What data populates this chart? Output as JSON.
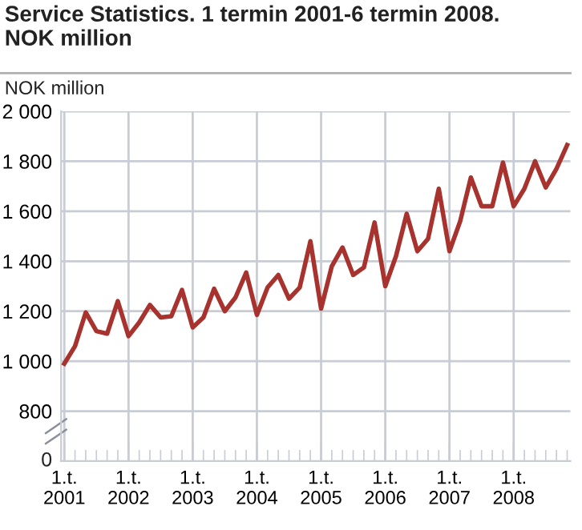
{
  "chart_data": {
    "type": "line",
    "title": "Service Statistics. 1 termin 2001-6 termin 2008.\nNOK million",
    "ylabel": "NOK million",
    "categories": [
      "1.t.\n2001",
      null,
      null,
      null,
      null,
      null,
      "1.t.\n2002",
      null,
      null,
      null,
      null,
      null,
      "1.t.\n2003",
      null,
      null,
      null,
      null,
      null,
      "1.t.\n2004",
      null,
      null,
      null,
      null,
      null,
      "1.t.\n2005",
      null,
      null,
      null,
      null,
      null,
      "1.t.\n2006",
      null,
      null,
      null,
      null,
      null,
      "1.t.\n2007",
      null,
      null,
      null,
      null,
      null,
      "1.t.\n2008",
      null,
      null,
      null,
      null,
      null
    ],
    "series": [
      {
        "color": "#a8322d",
        "values": [
          990,
          1060,
          1195,
          1120,
          1110,
          1240,
          1100,
          1155,
          1225,
          1175,
          1180,
          1285,
          1135,
          1175,
          1290,
          1200,
          1255,
          1355,
          1185,
          1295,
          1345,
          1250,
          1295,
          1480,
          1210,
          1380,
          1455,
          1345,
          1375,
          1555,
          1300,
          1420,
          1590,
          1440,
          1490,
          1690,
          1440,
          1560,
          1735,
          1620,
          1620,
          1795,
          1620,
          1690,
          1800,
          1695,
          1770,
          1865
        ]
      }
    ],
    "annotations": [
      "0"
    ],
    "ylim": [
      600,
      2000
    ],
    "yticks": [
      800,
      {
        "value": 1000,
        "label": "1 000"
      },
      {
        "value": 1200,
        "label": "1 200"
      },
      {
        "value": 1400,
        "label": "1 400"
      },
      {
        "value": 1600,
        "label": "1 600"
      },
      {
        "value": 1800,
        "label": "1 800"
      },
      {
        "value": 2000,
        "label": "2 000"
      }
    ],
    "grid": true,
    "legend": false,
    "marker": "none",
    "line_style": "solid"
  }
}
